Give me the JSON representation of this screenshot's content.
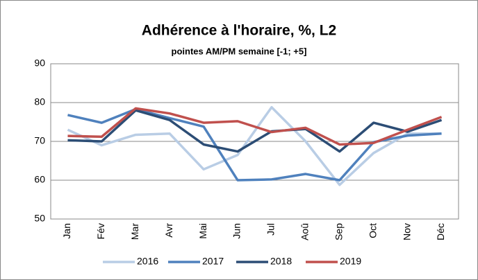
{
  "chart_data": {
    "type": "line",
    "title": "Adhérence à l'horaire, %, L2",
    "subtitle": "pointes AM/PM semaine [-1; +5]",
    "categories": [
      "Jan",
      "Fév",
      "Mar",
      "Avr",
      "Mai",
      "Jun",
      "Jul",
      "Aoû",
      "Sep",
      "Oct",
      "Nov",
      "Déc"
    ],
    "series": [
      {
        "name": "2016",
        "color": "#b9cde5",
        "values": [
          73,
          69,
          71.7,
          72,
          62.8,
          66.5,
          78.8,
          70,
          58.8,
          67,
          72,
          72
        ]
      },
      {
        "name": "2017",
        "color": "#4f81bd",
        "values": [
          76.8,
          74.8,
          78.3,
          76,
          73.8,
          60,
          60.2,
          61.6,
          60,
          69.8,
          71.5,
          72
        ]
      },
      {
        "name": "2018",
        "color": "#2c4d75",
        "values": [
          70.3,
          70,
          78,
          75.5,
          69.2,
          67.4,
          72.6,
          73.2,
          67.4,
          74.8,
          72.5,
          75.5
        ]
      },
      {
        "name": "2019",
        "color": "#c0504d",
        "values": [
          71.4,
          71.2,
          78.5,
          77.2,
          74.8,
          75.2,
          72.4,
          73.5,
          69.2,
          69.6,
          73,
          76.3
        ]
      }
    ],
    "ylim": [
      50,
      90
    ],
    "yticks": [
      50,
      60,
      70,
      80,
      90
    ],
    "grid": true,
    "legend": "bottom"
  }
}
